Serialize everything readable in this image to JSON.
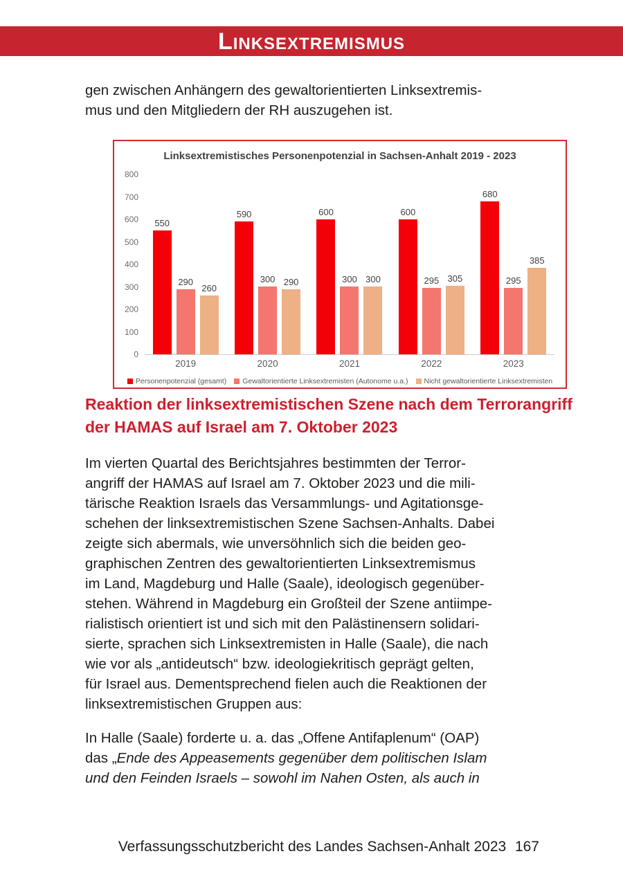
{
  "page": {
    "header": {
      "title": "Linksextremismus",
      "bg_color": "#c6242f"
    },
    "intro_paragraph": "gen zwischen Anhängern des gewaltorientierten Linksextremis-\nmus und den Mitgliedern der RH auszugehen ist.",
    "section_heading": "Reaktion der linksextremistischen Szene nach dem Terrorangriff\nder HAMAS auf Israel am 7. Oktober 2023",
    "heading_color": "#ce1f2e",
    "paragraph_main": "Im vierten Quartal des Berichtsjahres bestimmten der Terror-\nangriff der HAMAS auf Israel am 7. Oktober 2023 und die mili-\ntärische Reaktion Israels das Versammlungs- und Agitationsge-\nschehen der linksextremistischen Szene Sachsen-Anhalts. Dabei\nzeigte sich abermals, wie unversöhnlich sich die beiden geo-\ngraphischen Zentren des gewaltorientierten Linksextremismus\nim Land, Magdeburg und Halle (Saale), ideologisch gegenüber-\nstehen. Während in Magdeburg ein Großteil der Szene antiimpe-\nrialistisch orientiert ist und sich mit den Palästinensern solidari-\nsierte, sprachen sich Linksextremisten in Halle (Saale), die nach\nwie vor als „antideutsch“ bzw. ideologiekritisch geprägt gelten,\nfür Israel aus. Dementsprechend fielen auch die Reaktionen der\nlinksextremistischen Gruppen aus:",
    "paragraph_quote_lead": "In Halle (Saale) forderte u. a. das „Offene Antifaplenum“ (OAP)\ndas „",
    "paragraph_quote_italic": "Ende des Appeasements gegenüber dem politischen Islam\nund den Feinden Israels – sowohl im Nahen Osten, als auch in",
    "footer": {
      "text": "Verfassungsschutzbericht des Landes Sachsen-Anhalt 2023",
      "page_number": "167"
    }
  },
  "chart_data": {
    "type": "bar",
    "title": "Linksextremistisches Personenpotenzial in Sachsen-Anhalt 2019 - 2023",
    "categories": [
      "2019",
      "2020",
      "2021",
      "2022",
      "2023"
    ],
    "series": [
      {
        "name": "Personenpotenzial (gesamt)",
        "color": "#f40009",
        "values": [
          550,
          590,
          600,
          600,
          680
        ]
      },
      {
        "name": "Gewaltorientierte Linksextremisten (Autonome u.a.)",
        "color": "#f4766e",
        "values": [
          290,
          300,
          300,
          295,
          295
        ]
      },
      {
        "name": "Nicht gewaltorientierte Linksextremisten",
        "color": "#eeb085",
        "values": [
          260,
          290,
          300,
          305,
          385
        ]
      }
    ],
    "ylim": [
      0,
      800
    ],
    "ytick_step": 100,
    "grid": false,
    "legend_position": "bottom",
    "border_color": "#cf2a30",
    "xlabel": "",
    "ylabel": ""
  }
}
